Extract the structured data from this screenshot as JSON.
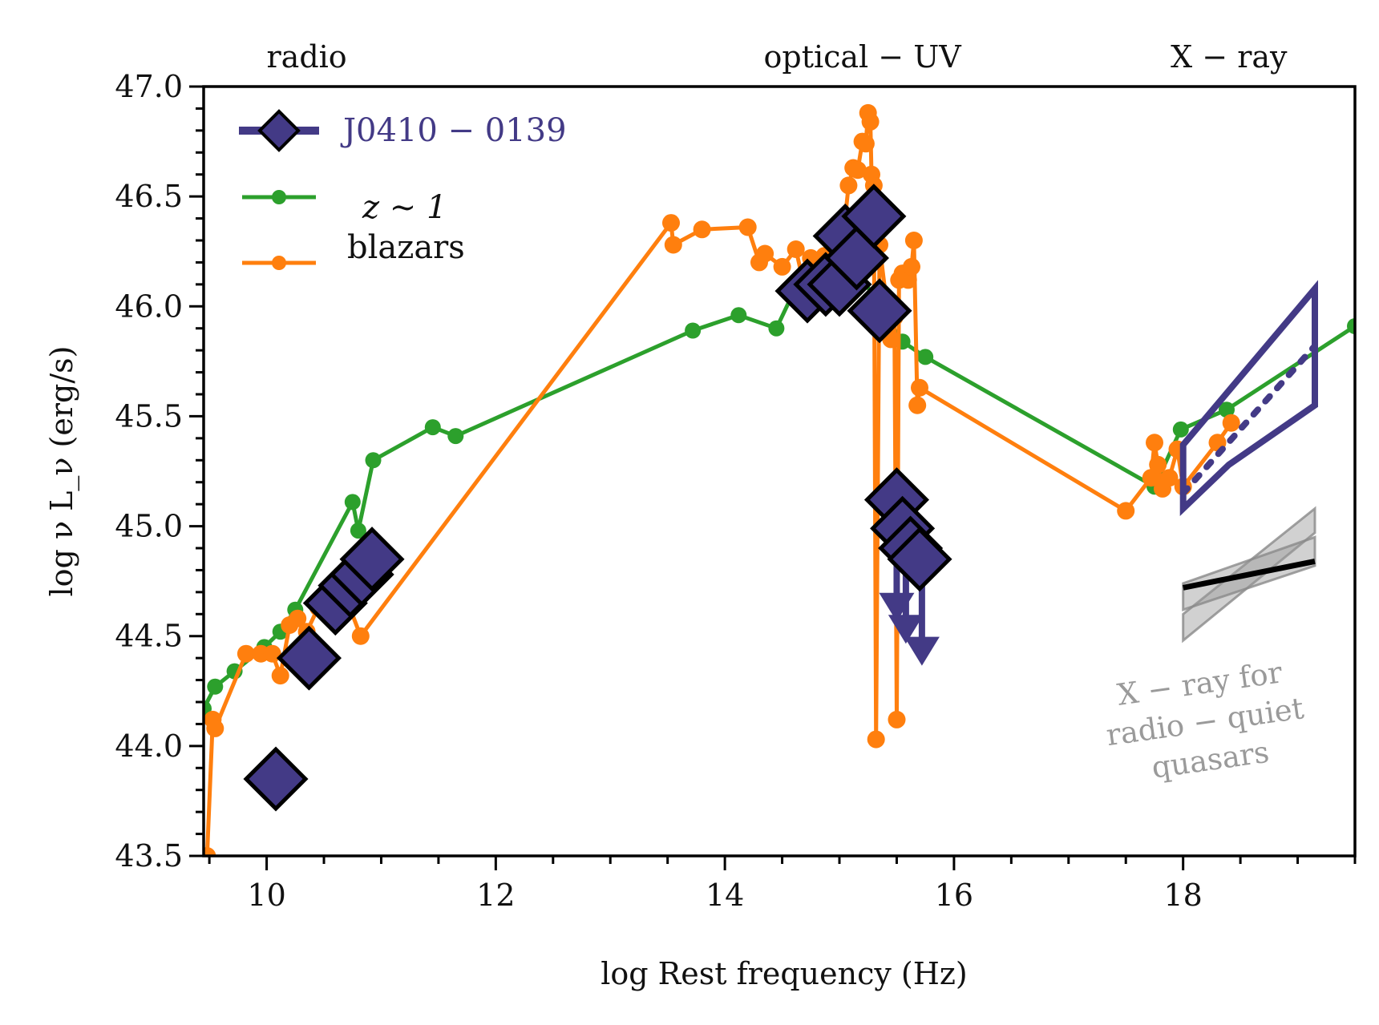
{
  "chart_data": {
    "type": "line",
    "xlabel": "log Rest frequency (Hz)",
    "ylabel": "log ν L_ν (erg/s)",
    "xlim": [
      9.45,
      19.5
    ],
    "ylim": [
      43.5,
      47.0
    ],
    "xticks": [
      10,
      12,
      14,
      16,
      18
    ],
    "yticks": [
      43.5,
      44.0,
      44.5,
      45.0,
      45.5,
      46.0,
      46.5,
      47.0
    ],
    "band_labels": [
      {
        "text": "radio",
        "x": 10.35
      },
      {
        "text": "optical − UV",
        "x": 15.2
      },
      {
        "text": "X − ray",
        "x": 18.4
      }
    ],
    "legend": {
      "placement": "top-left",
      "entries": [
        "J0410 − 0139",
        "z ∼ 1",
        "blazars"
      ]
    },
    "colors": {
      "j0410": "#433a86",
      "z1": "#2ca02c",
      "blazar": "#ff7f0e",
      "qso_band": "#9a9a9a"
    },
    "series": [
      {
        "name": "z ∼ 1",
        "style": "line-with-dots",
        "x": [
          9.45,
          9.55,
          9.72,
          9.98,
          10.12,
          10.25,
          10.75,
          10.8,
          10.93,
          11.45,
          11.65,
          13.72,
          14.12,
          14.45,
          14.65,
          14.95,
          15.15,
          15.32,
          15.55,
          15.75,
          17.75,
          17.98,
          18.38,
          19.5
        ],
        "y": [
          44.17,
          44.27,
          44.34,
          44.45,
          44.52,
          44.62,
          45.11,
          44.98,
          45.3,
          45.45,
          45.41,
          45.89,
          45.96,
          45.9,
          46.12,
          46.16,
          46.18,
          46.02,
          45.84,
          45.77,
          45.18,
          45.44,
          45.53,
          45.91
        ]
      },
      {
        "name": "blazars",
        "style": "line-with-dots",
        "x": [
          9.48,
          9.53,
          9.55,
          9.82,
          9.95,
          10.05,
          10.12,
          10.2,
          10.27,
          10.35,
          10.45,
          10.63,
          10.82,
          13.53,
          13.55,
          13.8,
          14.2,
          14.3,
          14.35,
          14.5,
          14.62,
          14.68,
          14.75,
          14.87,
          14.98,
          15.04,
          15.08,
          15.12,
          15.16,
          15.2,
          15.23,
          15.25,
          15.27,
          15.28,
          15.3,
          15.32,
          15.35,
          15.45,
          15.48,
          15.5,
          15.52,
          15.55,
          15.6,
          15.63,
          15.65,
          15.68,
          15.7,
          17.5,
          17.72,
          17.75,
          17.78,
          17.82,
          17.88,
          17.95,
          18.0,
          18.3,
          18.42
        ],
        "y": [
          43.5,
          44.12,
          44.08,
          44.42,
          44.42,
          44.42,
          44.32,
          44.55,
          44.58,
          44.52,
          44.63,
          44.76,
          44.5,
          46.38,
          46.28,
          46.35,
          46.36,
          46.2,
          46.24,
          46.18,
          46.26,
          46.12,
          46.22,
          46.23,
          46.29,
          46.35,
          46.55,
          46.63,
          46.62,
          46.75,
          46.74,
          46.88,
          46.84,
          46.6,
          46.55,
          44.03,
          46.28,
          45.85,
          45.95,
          44.12,
          46.12,
          46.15,
          46.12,
          46.18,
          46.3,
          45.55,
          45.63,
          45.07,
          45.22,
          45.38,
          45.28,
          45.17,
          45.22,
          45.35,
          45.18,
          45.38,
          45.47
        ]
      },
      {
        "name": "J0410 − 0139",
        "style": "diamond-markers",
        "x": [
          10.08,
          10.37,
          10.6,
          10.73,
          10.83,
          10.92,
          14.72,
          14.88,
          15.0,
          15.05,
          15.15,
          15.3,
          15.35,
          15.5,
          15.55,
          15.62,
          15.7
        ],
        "y": [
          43.85,
          44.4,
          44.65,
          44.73,
          44.78,
          44.85,
          46.07,
          46.1,
          46.1,
          46.32,
          46.22,
          46.41,
          45.98,
          45.12,
          44.99,
          44.9,
          44.85
        ]
      }
    ],
    "upper_limits": [
      {
        "x": 15.5,
        "y_from": 45.0,
        "y_to": 44.58
      },
      {
        "x": 15.58,
        "y_from": 44.95,
        "y_to": 44.48
      },
      {
        "x": 15.72,
        "y_from": 44.9,
        "y_to": 44.38
      }
    ],
    "xray_bowtie": {
      "x_start": 18.0,
      "x_end": 19.15,
      "upper": [
        45.37,
        46.08
      ],
      "lower": [
        45.08,
        45.55
      ],
      "best_fit": [
        45.15,
        45.82
      ]
    },
    "qso_band": {
      "label_lines": [
        "X − ray for",
        "radio − quiet",
        "quasars"
      ],
      "x": [
        18.0,
        19.15
      ],
      "center": [
        44.72,
        44.84
      ],
      "inner": [
        [
          44.62,
          44.82
        ],
        [
          44.74,
          44.95
        ]
      ],
      "outer": [
        [
          44.48,
          44.97
        ],
        [
          44.6,
          45.08
        ]
      ]
    }
  }
}
